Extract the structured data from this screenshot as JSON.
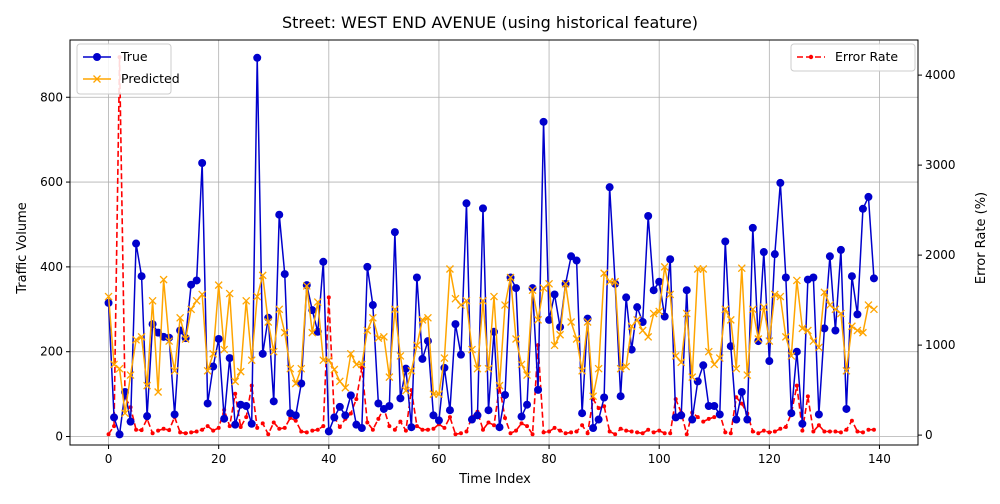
{
  "chart_data": {
    "type": "line",
    "title": "Street: WEST END AVENUE (using historical feature)",
    "xlabel": "Time Index",
    "ylabel": "Traffic Volume",
    "y2label": "Error Rate (%)",
    "xlim": [
      -7,
      147
    ],
    "ylim": [
      -20,
      935
    ],
    "y2lim": [
      -110,
      4390
    ],
    "x_ticks": [
      0,
      20,
      40,
      60,
      80,
      100,
      120,
      140
    ],
    "y_ticks": [
      0,
      200,
      400,
      600,
      800
    ],
    "y2_ticks": [
      0,
      1000,
      2000,
      3000,
      4000
    ],
    "grid": true,
    "legend_left": {
      "position": "upper-left",
      "entries": [
        "True",
        "Predicted"
      ]
    },
    "legend_right": {
      "position": "upper-right",
      "entries": [
        "Error Rate"
      ]
    },
    "colors": {
      "true": "#0000cc",
      "predicted": "#ffa500",
      "error": "#ff0000"
    },
    "series": [
      {
        "name": "True",
        "axis": "left",
        "values": [
          315,
          45,
          5,
          105,
          35,
          455,
          378,
          48,
          265,
          245,
          235,
          233,
          52,
          250,
          232,
          358,
          368,
          645,
          78,
          165,
          230,
          42,
          185,
          28,
          75,
          72,
          30,
          893,
          195,
          280,
          83,
          523,
          383,
          55,
          50,
          125,
          357,
          298,
          247,
          412,
          12,
          45,
          70,
          50,
          97,
          28,
          20,
          400,
          310,
          78,
          65,
          72,
          482,
          90,
          160,
          22,
          375,
          183,
          225,
          50,
          38,
          162,
          62,
          265,
          193,
          550,
          40,
          50,
          538,
          62,
          247,
          22,
          98,
          375,
          350,
          47,
          75,
          350,
          110,
          742,
          275,
          335,
          258,
          360,
          425,
          415,
          55,
          278,
          20,
          40,
          92,
          588,
          360,
          95,
          328,
          205,
          305,
          270,
          520,
          345,
          365,
          283,
          418,
          45,
          50,
          345,
          40,
          130,
          168,
          72,
          72,
          52,
          460,
          213,
          40,
          105,
          40,
          492,
          225,
          435,
          178,
          430,
          598,
          375,
          55,
          200,
          30,
          370,
          375,
          52,
          255,
          425,
          250,
          440,
          65,
          378,
          288,
          537,
          565,
          373
        ]
      },
      {
        "name": "Predicted",
        "axis": "left",
        "values": [
          330,
          170,
          160,
          55,
          145,
          228,
          235,
          120,
          320,
          105,
          370,
          225,
          155,
          280,
          230,
          300,
          320,
          335,
          155,
          195,
          357,
          205,
          337,
          130,
          153,
          320,
          180,
          330,
          380,
          270,
          200,
          300,
          245,
          160,
          125,
          160,
          355,
          245,
          317,
          180,
          180,
          158,
          130,
          115,
          195,
          170,
          170,
          250,
          280,
          232,
          235,
          140,
          300,
          190,
          108,
          155,
          215,
          275,
          280,
          100,
          100,
          185,
          395,
          325,
          310,
          320,
          205,
          160,
          320,
          160,
          330,
          120,
          310,
          375,
          230,
          170,
          145,
          345,
          275,
          350,
          360,
          215,
          240,
          360,
          270,
          230,
          155,
          270,
          95,
          160,
          385,
          365,
          365,
          160,
          165,
          260,
          275,
          250,
          235,
          290,
          295,
          400,
          335,
          190,
          175,
          290,
          140,
          395,
          395,
          200,
          170,
          185,
          300,
          275,
          160,
          397,
          145,
          300,
          230,
          305,
          225,
          335,
          330,
          235,
          190,
          368,
          255,
          250,
          225,
          210,
          340,
          310,
          300,
          290,
          155,
          260,
          250,
          245,
          310,
          300
        ]
      },
      {
        "name": "Error Rate",
        "axis": "right",
        "values": [
          10,
          100,
          4200,
          420,
          310,
          60,
          55,
          180,
          20,
          50,
          70,
          55,
          200,
          30,
          20,
          30,
          40,
          60,
          100,
          50,
          80,
          280,
          100,
          460,
          90,
          200,
          550,
          80,
          130,
          10,
          140,
          70,
          80,
          190,
          160,
          40,
          30,
          50,
          60,
          100,
          1530,
          200,
          90,
          180,
          240,
          400,
          750,
          140,
          60,
          180,
          300,
          100,
          60,
          150,
          50,
          500,
          100,
          60,
          60,
          70,
          120,
          80,
          200,
          10,
          20,
          40,
          200,
          260,
          60,
          140,
          110,
          540,
          190,
          20,
          50,
          130,
          100,
          10,
          1000,
          30,
          40,
          80,
          50,
          20,
          30,
          40,
          110,
          20,
          400,
          300,
          320,
          40,
          10,
          70,
          50,
          40,
          30,
          20,
          60,
          30,
          50,
          20,
          20,
          400,
          250,
          10,
          250,
          200,
          150,
          180,
          200,
          240,
          30,
          20,
          420,
          350,
          240,
          40,
          20,
          50,
          30,
          40,
          70,
          90,
          240,
          550,
          50,
          430,
          40,
          110,
          40,
          40,
          40,
          30,
          60,
          160,
          40,
          30,
          60,
          60
        ]
      }
    ]
  }
}
